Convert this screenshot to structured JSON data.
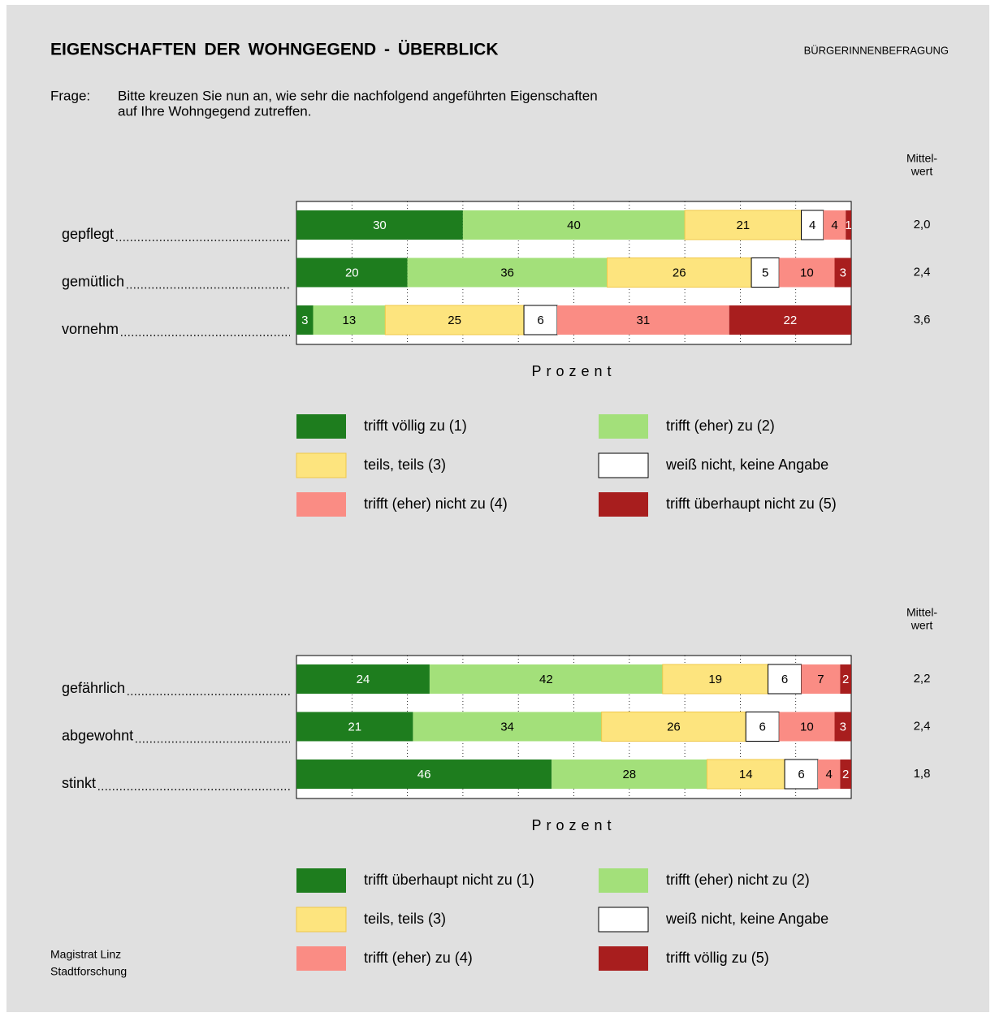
{
  "header": {
    "title": "EIGENSCHAFTEN DER WOHNGEGEND - ÜBERBLICK",
    "source": "BÜRGERINNENBEFRAGUNG"
  },
  "question": {
    "label": "Frage:",
    "lines": [
      "Bitte kreuzen Sie nun an, wie sehr die nachfolgend angeführten Eigenschaften",
      "auf Ihre Wohngegend zutreffen."
    ]
  },
  "chart_data": [
    {
      "type": "stacked_bar_horizontal",
      "xlabel": "Prozent",
      "xlim": [
        0,
        100
      ],
      "xticks": [
        0,
        10,
        20,
        30,
        40,
        50,
        60,
        70,
        80,
        90,
        100
      ],
      "grid": true,
      "mean_header": [
        "Mittel-",
        "wert"
      ],
      "categories": [
        "gepflegt",
        "gemütlich",
        "vornehm"
      ],
      "means": [
        "2,0",
        "2,4",
        "3,6"
      ],
      "series": [
        {
          "name": "trifft völlig zu (1)",
          "color": "#1e7d1e",
          "label_color": "#ffffff",
          "values": [
            30,
            20,
            3
          ]
        },
        {
          "name": "trifft (eher) zu (2)",
          "color": "#a3e07a",
          "label_color": "#000000",
          "values": [
            40,
            36,
            13
          ]
        },
        {
          "name": "teils, teils (3)",
          "color": "#fde47e",
          "label_color": "#000000",
          "values": [
            21,
            26,
            25
          ]
        },
        {
          "name": "weiß nicht, keine Angabe",
          "color": "#ffffff",
          "label_color": "#000000",
          "values": [
            4,
            5,
            6
          ]
        },
        {
          "name": "trifft (eher) nicht zu (4)",
          "color": "#fa8c84",
          "label_color": "#000000",
          "values": [
            4,
            10,
            31
          ]
        },
        {
          "name": "trifft überhaupt nicht zu (5)",
          "color": "#a81e1e",
          "label_color": "#ffffff",
          "values": [
            1,
            3,
            22
          ]
        }
      ]
    },
    {
      "type": "stacked_bar_horizontal",
      "xlabel": "Prozent",
      "xlim": [
        0,
        100
      ],
      "xticks": [
        0,
        10,
        20,
        30,
        40,
        50,
        60,
        70,
        80,
        90,
        100
      ],
      "grid": true,
      "mean_header": [
        "Mittel-",
        "wert"
      ],
      "categories": [
        "gefährlich",
        "abgewohnt",
        "stinkt"
      ],
      "means": [
        "2,2",
        "2,4",
        "1,8"
      ],
      "series": [
        {
          "name": "trifft überhaupt nicht zu (1)",
          "color": "#1e7d1e",
          "label_color": "#ffffff",
          "values": [
            24,
            21,
            46
          ]
        },
        {
          "name": "trifft (eher) nicht zu (2)",
          "color": "#a3e07a",
          "label_color": "#000000",
          "values": [
            42,
            34,
            28
          ]
        },
        {
          "name": "teils, teils (3)",
          "color": "#fde47e",
          "label_color": "#000000",
          "values": [
            19,
            26,
            14
          ]
        },
        {
          "name": "weiß nicht, keine Angabe",
          "color": "#ffffff",
          "label_color": "#000000",
          "values": [
            6,
            6,
            6
          ]
        },
        {
          "name": "trifft (eher) zu (4)",
          "color": "#fa8c84",
          "label_color": "#000000",
          "values": [
            7,
            10,
            4
          ]
        },
        {
          "name": "trifft völlig zu (5)",
          "color": "#a81e1e",
          "label_color": "#ffffff",
          "values": [
            2,
            3,
            2
          ]
        }
      ]
    }
  ],
  "footer": {
    "lines": [
      "Magistrat Linz",
      "Stadtforschung"
    ]
  }
}
